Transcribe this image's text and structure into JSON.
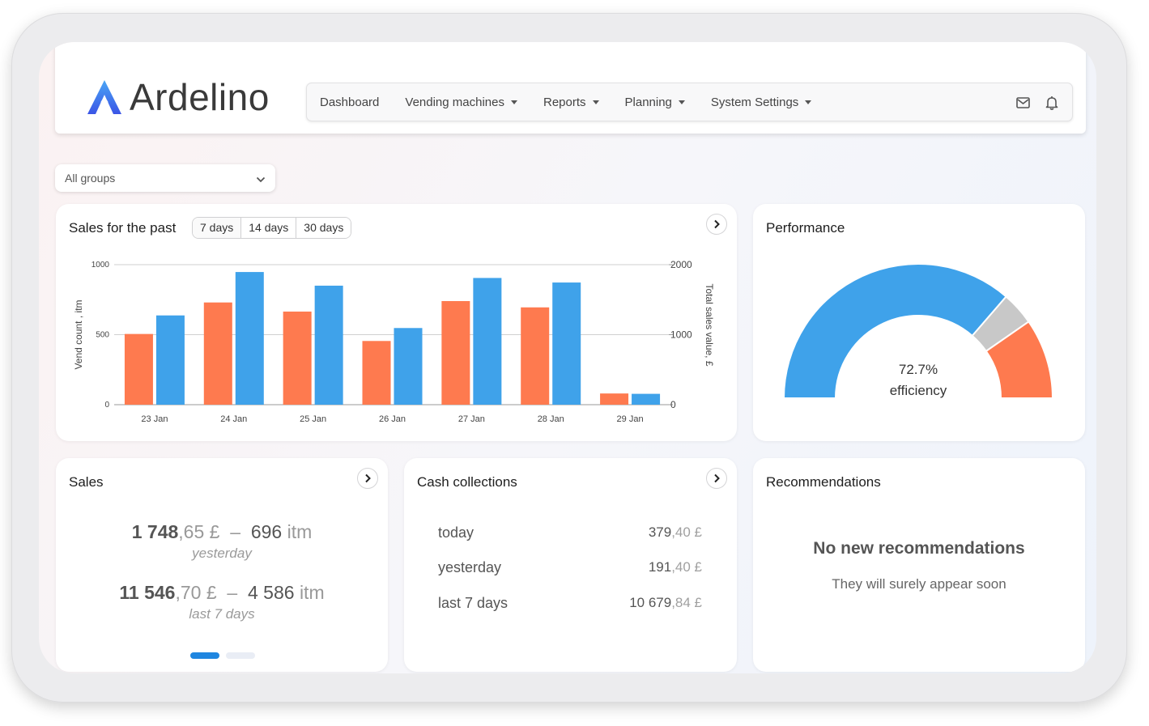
{
  "app": {
    "name": "Ardelino"
  },
  "nav": {
    "items": [
      {
        "label": "Dashboard",
        "dropdown": false
      },
      {
        "label": "Vending machines",
        "dropdown": true
      },
      {
        "label": "Reports",
        "dropdown": true
      },
      {
        "label": "Planning",
        "dropdown": true
      },
      {
        "label": "System Settings",
        "dropdown": true
      }
    ],
    "icons": [
      "mail-icon",
      "bell-icon"
    ]
  },
  "group_select": {
    "value": "All groups"
  },
  "sales_chart": {
    "title": "Sales for the past",
    "periods": [
      "7 days",
      "14 days",
      "30 days"
    ],
    "selected_period": "7 days"
  },
  "chart_data": {
    "type": "bar",
    "categories": [
      "23 Jan",
      "24 Jan",
      "25 Jan",
      "26 Jan",
      "27 Jan",
      "28 Jan",
      "29 Jan"
    ],
    "series": [
      {
        "name": "Vend count",
        "axis": "left",
        "color": "#fe7a4f",
        "values": [
          505,
          730,
          665,
          455,
          740,
          695,
          80
        ]
      },
      {
        "name": "Total sales value",
        "axis": "right",
        "color": "#3fa2ea",
        "values": [
          1275,
          1895,
          1700,
          1095,
          1810,
          1745,
          155
        ]
      }
    ],
    "ylabel": "Vend count , itm",
    "ylabel_right": "Total sales value, £",
    "ylim": [
      0,
      1000
    ],
    "ylim_right": [
      0,
      2000
    ],
    "yticks": [
      0,
      500,
      1000
    ],
    "yticks_right": [
      0,
      1000,
      2000
    ],
    "grid": true
  },
  "performance": {
    "title": "Performance",
    "value_label": "72.7%",
    "caption": "efficiency",
    "segments": [
      {
        "fraction": 0.727,
        "color": "#3fa2ea"
      },
      {
        "fraction": 0.08,
        "color": "#c8c8c8"
      },
      {
        "fraction": 0.193,
        "color": "#fe7a4f"
      }
    ]
  },
  "sales": {
    "title": "Sales",
    "rows": [
      {
        "amount_int": "1 748",
        "amount_dec": ",65 £",
        "sep": "–",
        "items": "696",
        "unit": "itm",
        "period": "yesterday"
      },
      {
        "amount_int": "11 546",
        "amount_dec": ",70 £",
        "sep": "–",
        "items": "4 586",
        "unit": "itm",
        "period": "last 7 days"
      }
    ]
  },
  "cash": {
    "title": "Cash collections",
    "rows": [
      {
        "label": "today",
        "int": "379",
        "dec": ",40 £"
      },
      {
        "label": "yesterday",
        "int": "191",
        "dec": ",40 £"
      },
      {
        "label": "last 7 days",
        "int": "10 679",
        "dec": ",84 £"
      }
    ]
  },
  "recommendations": {
    "title": "Recommendations",
    "message": "No new recommendations",
    "sub": "They will surely appear soon"
  }
}
